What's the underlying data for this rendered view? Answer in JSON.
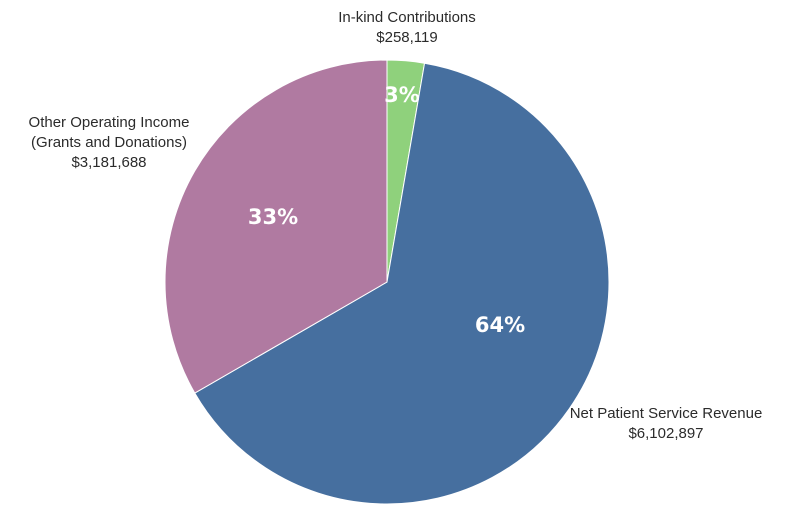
{
  "chart_data": {
    "type": "pie",
    "slices": [
      {
        "label_lines": [
          "In-kind Contributions",
          "$258,119"
        ],
        "value": 258119,
        "percent_label": "3%",
        "color": "#8fd17c"
      },
      {
        "label_lines": [
          "Net Patient Service Revenue",
          "$6,102,897"
        ],
        "value": 6102897,
        "percent_label": "64%",
        "color": "#466f9f"
      },
      {
        "label_lines": [
          "Other Operating Income",
          "(Grants and Donations)",
          "$3,181,688"
        ],
        "value": 3181688,
        "percent_label": "33%",
        "color": "#b07aa1"
      }
    ],
    "start": "top",
    "direction": "clockwise",
    "legend": "none"
  }
}
